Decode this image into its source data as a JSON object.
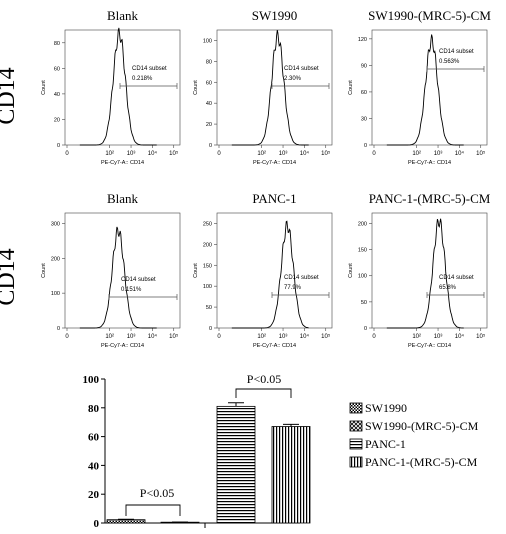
{
  "row_labels": [
    "CD14",
    "CD14"
  ],
  "histograms": [
    {
      "title": "Blank",
      "xlabel": "PE-Cy7-A:: CD14",
      "ylabel": "Count",
      "gate_label": "CD14 subset",
      "gate_value": "0.218%",
      "yticks": [
        "0",
        "20",
        "40",
        "60",
        "80"
      ],
      "ymax": 90,
      "peak_log": 2.45,
      "peak_height": 87
    },
    {
      "title": "SW1990",
      "xlabel": "PE-Cy7-A:: CD14",
      "ylabel": "Count",
      "gate_label": "CD14 subset",
      "gate_value": "2.30%",
      "yticks": [
        "0",
        "20",
        "40",
        "60",
        "80",
        "100"
      ],
      "ymax": 110,
      "peak_log": 2.75,
      "peak_height": 104
    },
    {
      "title": "SW1990-(MRC-5)-CM",
      "xlabel": "PE-Cy7-A:: CD14",
      "ylabel": "Count",
      "gate_label": "CD14 subset",
      "gate_value": "0.563%",
      "yticks": [
        "0",
        "30",
        "60",
        "90",
        "120"
      ],
      "ymax": 130,
      "peak_log": 2.7,
      "peak_height": 118
    },
    {
      "title": "Blank",
      "xlabel": "PE-Cy7-A:: CD14",
      "ylabel": "Count",
      "gate_label": "CD14 subset",
      "gate_value": "0.151%",
      "yticks": [
        "0",
        "100",
        "200",
        "300"
      ],
      "ymax": 330,
      "peak_log": 2.4,
      "peak_height": 280
    },
    {
      "title": "PANC-1",
      "xlabel": "PE-Cy7-A:: CD14",
      "ylabel": "Count",
      "gate_label": "CD14 subset",
      "gate_value": "77.9%",
      "yticks": [
        "0",
        "50",
        "100",
        "150",
        "200",
        "250"
      ],
      "ymax": 275,
      "peak_log": 3.2,
      "peak_height": 245
    },
    {
      "title": "PANC-1-(MRC-5)-CM",
      "xlabel": "PE-Cy7-A:: CD14",
      "ylabel": "Count",
      "gate_label": "CD14 subset",
      "gate_value": "65.8%",
      "yticks": [
        "0",
        "50",
        "100",
        "150",
        "200"
      ],
      "ymax": 220,
      "peak_log": 3.05,
      "peak_height": 205
    }
  ],
  "xticks": [
    "0",
    "10²",
    "10³",
    "10⁴",
    "10⁵"
  ],
  "chart_data": {
    "type": "bar",
    "categories": [
      "SW1990",
      "SW1990-(MRC-5)-CM",
      "PANC-1",
      "PANC-1-(MRC-5)-CM"
    ],
    "values": [
      2.3,
      0.56,
      81,
      67
    ],
    "errors": [
      0.3,
      0.1,
      2.5,
      1.5
    ],
    "ylim": [
      0,
      100
    ],
    "yticks": [
      "0",
      "20",
      "40",
      "60",
      "80",
      "100"
    ],
    "legend": [
      "SW1990",
      "SW1990-(MRC-5)-CM",
      "PANC-1",
      "PANC-1-(MRC-5)-CM"
    ],
    "legend_position": "right",
    "annotations": [
      "P<0.05",
      "P<0.05"
    ]
  }
}
